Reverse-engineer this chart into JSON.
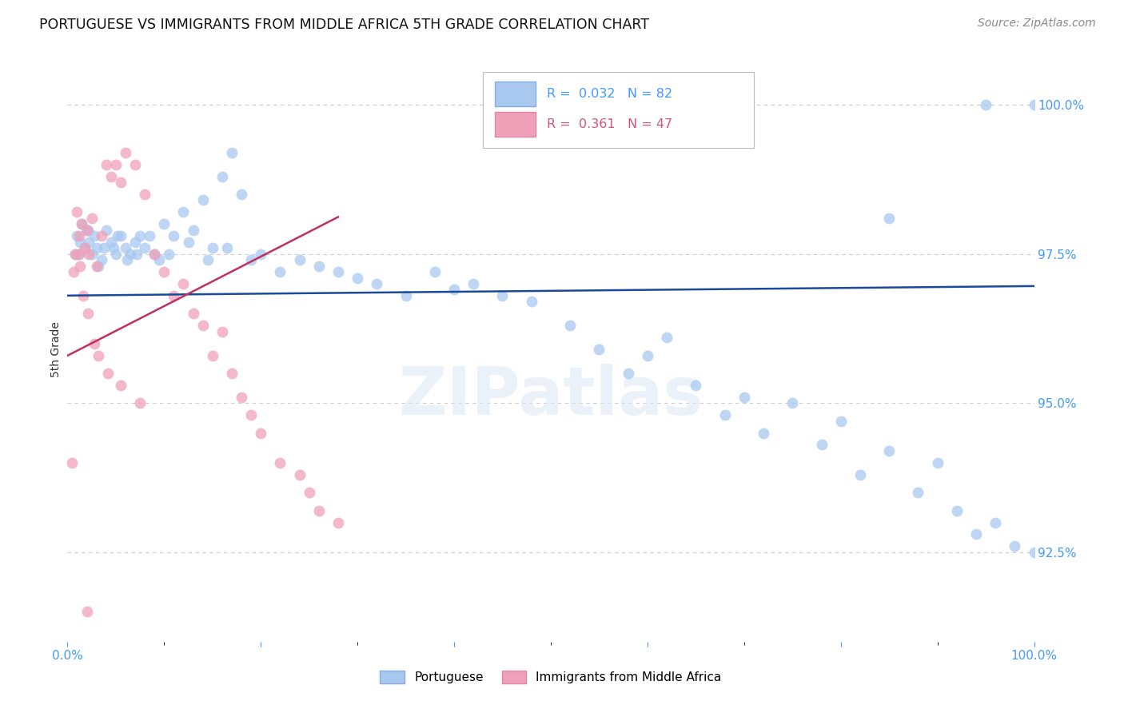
{
  "title": "PORTUGUESE VS IMMIGRANTS FROM MIDDLE AFRICA 5TH GRADE CORRELATION CHART",
  "source": "Source: ZipAtlas.com",
  "ylabel": "5th Grade",
  "xlim": [
    0.0,
    100.0
  ],
  "ylim": [
    91.0,
    100.8
  ],
  "yticks": [
    92.5,
    95.0,
    97.5,
    100.0
  ],
  "ytick_labels": [
    "92.5%",
    "95.0%",
    "97.5%",
    "100.0%"
  ],
  "blue_R": 0.032,
  "blue_N": 82,
  "pink_R": 0.361,
  "pink_N": 47,
  "blue_color": "#a8c8f0",
  "pink_color": "#f0a0b8",
  "trend_blue": "#1a4a9a",
  "trend_pink": "#c03060",
  "watermark": "ZIPatlas",
  "background_color": "#ffffff",
  "grid_color": "#cccccc",
  "tick_color": "#4499ff",
  "title_fontsize": 12.5,
  "source_fontsize": 10,
  "ylabel_fontsize": 10
}
